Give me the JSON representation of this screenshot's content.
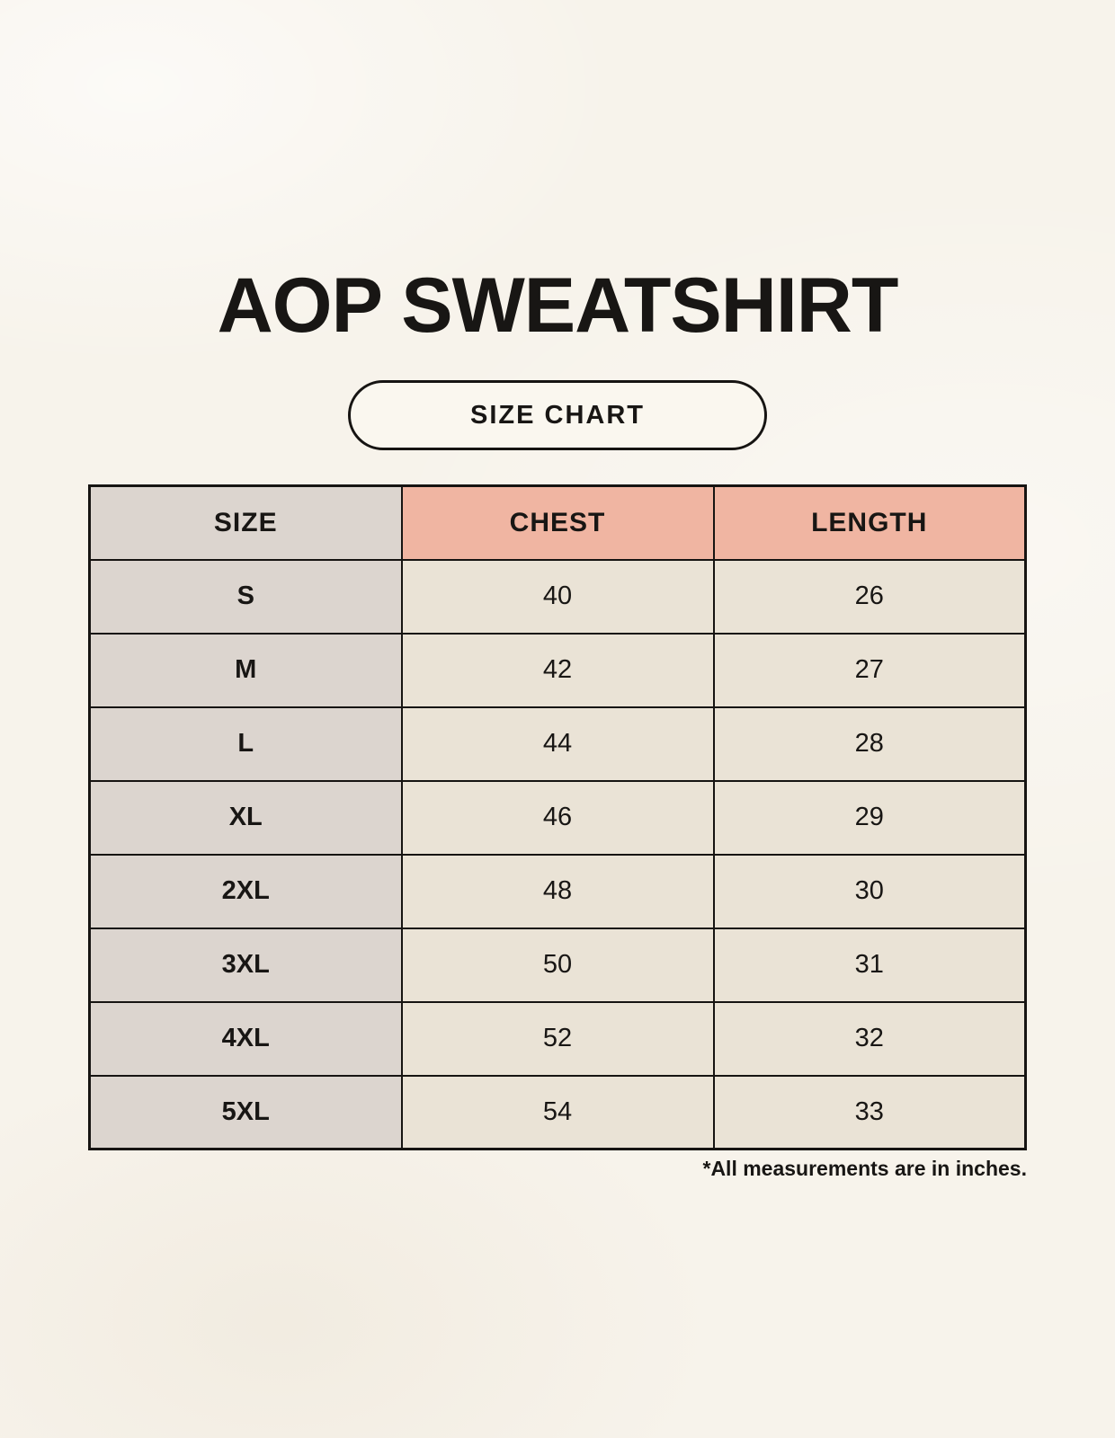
{
  "colors": {
    "bg": "#F7F3EB",
    "badge-bg": "#FAF7EF",
    "gray": "#DCD5CF",
    "salmon": "#F0B5A2",
    "cream": "#EAE3D6",
    "border": "#161412",
    "text": "#181614"
  },
  "chart_data": {
    "type": "table",
    "title": "AOP SWEATSHIRT",
    "subtitle": "SIZE CHART",
    "note": "*All measurements are in inches.",
    "units": "inches",
    "columns": [
      "SIZE",
      "CHEST",
      "LENGTH"
    ],
    "rows": [
      {
        "size": "S",
        "chest": 40,
        "length": 26
      },
      {
        "size": "M",
        "chest": 42,
        "length": 27
      },
      {
        "size": "L",
        "chest": 44,
        "length": 28
      },
      {
        "size": "XL",
        "chest": 46,
        "length": 29
      },
      {
        "size": "2XL",
        "chest": 48,
        "length": 30
      },
      {
        "size": "3XL",
        "chest": 50,
        "length": 31
      },
      {
        "size": "4XL",
        "chest": 52,
        "length": 32
      },
      {
        "size": "5XL",
        "chest": 54,
        "length": 33
      }
    ]
  }
}
